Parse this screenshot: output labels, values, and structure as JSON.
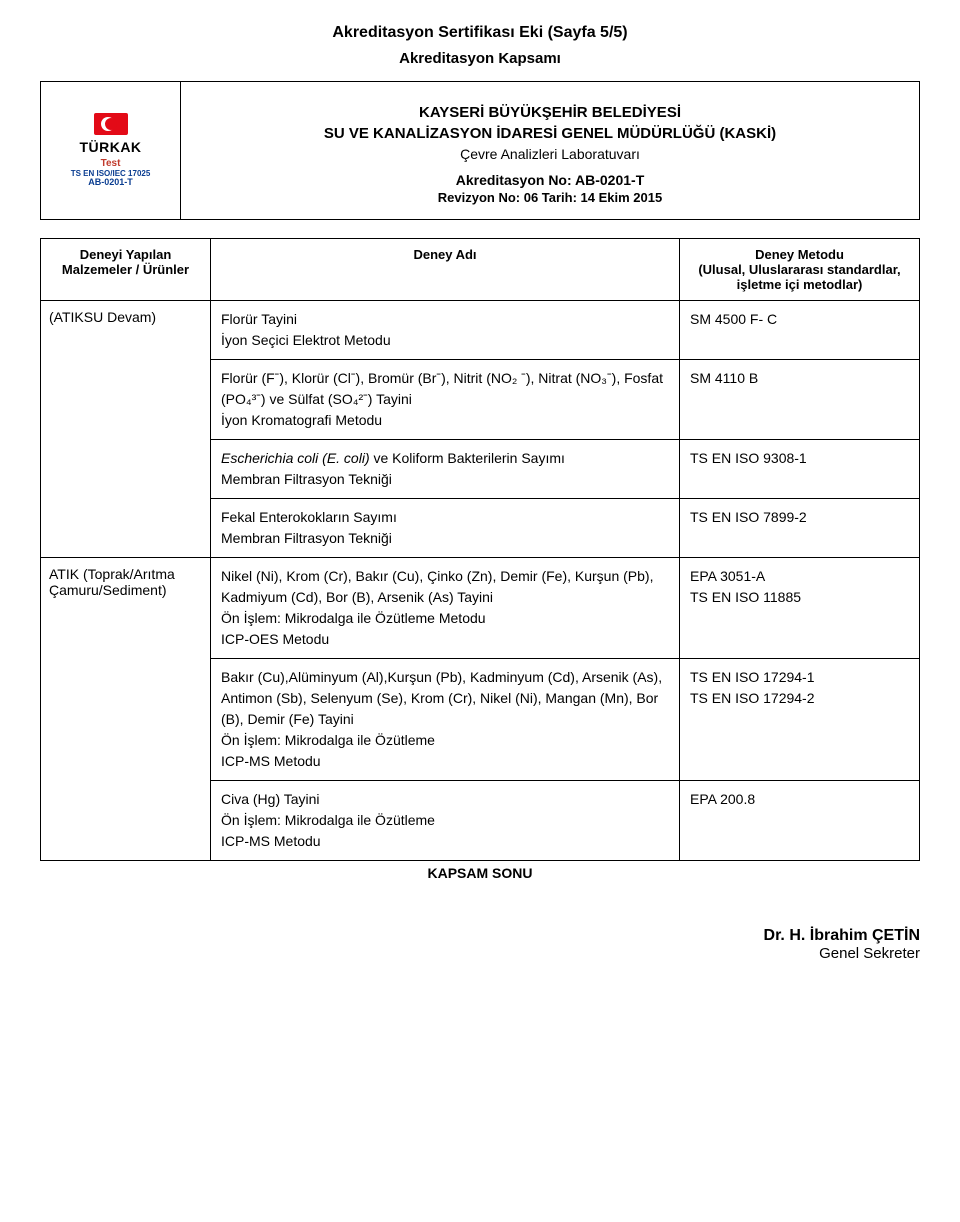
{
  "header": {
    "title": "Akreditasyon Sertifikası Eki (Sayfa 5/5)",
    "subtitle": "Akreditasyon Kapsamı",
    "org1": "KAYSERİ BÜYÜKŞEHİR BELEDİYESİ",
    "org2": "SU VE KANALİZASYON İDARESİ GENEL MÜDÜRLÜĞÜ (KASKİ)",
    "lab": "Çevre Analizleri Laboratuvarı",
    "akno": "Akreditasyon No: AB-0201-T",
    "rev": "Revizyon No: 06 Tarih: 14 Ekim 2015"
  },
  "logo": {
    "name": "TÜRKAK",
    "test": "Test",
    "iso": "TS EN ISO/IEC 17025",
    "code": "AB-0201-T"
  },
  "columns": {
    "materials": "Deneyi Yapılan\nMalzemeler / Ürünler",
    "test": "Deney Adı",
    "method": "Deney Metodu\n(Ulusal, Uluslararası standardlar,\nişletme içi metodlar)"
  },
  "groups": [
    {
      "material": "(ATIKSU Devam)",
      "rows": [
        {
          "test": "Florür Tayini\nİyon Seçici Elektrot Metodu",
          "method": "SM 4500 F- C"
        },
        {
          "test": "Florür (Fˉ), Klorür (Clˉ), Bromür (Brˉ), Nitrit (NO₂ ˉ), Nitrat (NO₃ˉ), Fosfat (PO₄³ˉ) ve Sülfat (SO₄²ˉ) Tayini\nİyon Kromatografi Metodu",
          "method": "SM 4110 B"
        },
        {
          "test_html": "<span class=\"italic\">Escherichia coli (E. coli)</span> ve Koliform Bakterilerin Sayımı<br>Membran Filtrasyon Tekniği",
          "method": "TS EN ISO 9308-1"
        },
        {
          "test": "Fekal Enterokokların Sayımı\nMembran Filtrasyon Tekniği",
          "method": "TS EN ISO 7899-2"
        }
      ]
    },
    {
      "material": "ATIK (Toprak/Arıtma Çamuru/Sediment)",
      "rows": [
        {
          "test": "Nikel (Ni), Krom (Cr), Bakır (Cu), Çinko (Zn), Demir (Fe), Kurşun (Pb), Kadmiyum (Cd), Bor (B), Arsenik (As) Tayini\nÖn İşlem: Mikrodalga ile Özütleme Metodu\nICP-OES Metodu",
          "method": "EPA 3051-A\nTS EN ISO 11885"
        },
        {
          "test": "Bakır (Cu),Alüminyum (Al),Kurşun (Pb), Kadminyum (Cd), Arsenik (As), Antimon (Sb), Selenyum (Se), Krom (Cr), Nikel (Ni), Mangan (Mn), Bor (B), Demir (Fe) Tayini\nÖn İşlem: Mikrodalga ile Özütleme\nICP-MS Metodu",
          "method": "TS EN ISO 17294-1\nTS EN ISO 17294-2"
        },
        {
          "test": "Civa (Hg) Tayini\nÖn İşlem: Mikrodalga ile Özütleme\nICP-MS Metodu",
          "method": "EPA 200.8"
        }
      ]
    }
  ],
  "footer": {
    "kapsam": "KAPSAM SONU",
    "sig_name": "Dr. H. İbrahim ÇETİN",
    "sig_title": "Genel Sekreter"
  }
}
